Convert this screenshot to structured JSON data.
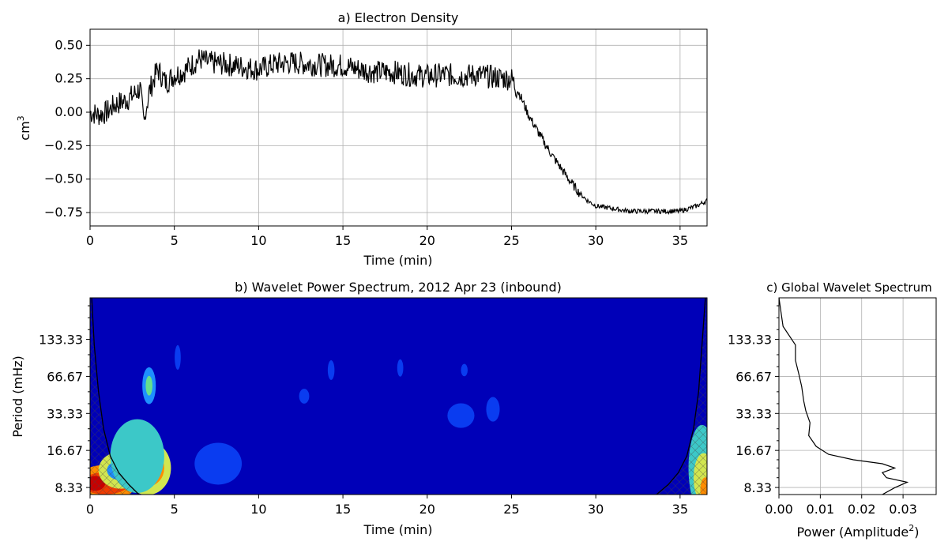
{
  "chart_data": [
    {
      "id": "a",
      "type": "line",
      "title": "a) Electron Density",
      "xlabel": "Time (min)",
      "ylabel": "cm",
      "ylabel_sup": "3",
      "xlim": [
        0,
        36.6
      ],
      "ylim": [
        -0.85,
        0.62
      ],
      "xticks": [
        0,
        5,
        10,
        15,
        20,
        25,
        30,
        35
      ],
      "xtick_labels": [
        "0",
        "5",
        "10",
        "15",
        "20",
        "25",
        "30",
        "35"
      ],
      "yticks": [
        0.5,
        0.25,
        0.0,
        -0.25,
        -0.5,
        -0.75
      ],
      "ytick_labels": [
        "0.50",
        "0.25",
        "0.00",
        "−0.25",
        "−0.50",
        "−0.75"
      ],
      "grid": true,
      "line_color": "#000000",
      "series": [
        {
          "x": [
            0,
            0.5,
            1,
            1.5,
            2,
            2.5,
            3,
            3.2,
            3.5,
            4,
            4.5,
            5,
            5.5,
            6,
            6.5,
            7,
            8,
            9,
            10,
            11,
            12,
            13,
            14,
            15,
            16,
            17,
            18,
            19,
            20,
            21,
            22,
            23,
            24,
            25,
            25.5,
            26,
            26.5,
            27,
            27.5,
            28,
            28.5,
            29,
            29.5,
            30,
            31,
            32,
            33,
            34,
            35,
            36,
            36.6
          ],
          "y": [
            0.0,
            -0.02,
            0.0,
            0.06,
            0.08,
            0.12,
            0.18,
            -0.08,
            0.15,
            0.32,
            0.22,
            0.28,
            0.3,
            0.35,
            0.4,
            0.37,
            0.36,
            0.34,
            0.32,
            0.36,
            0.37,
            0.36,
            0.35,
            0.35,
            0.32,
            0.3,
            0.3,
            0.28,
            0.27,
            0.28,
            0.27,
            0.28,
            0.26,
            0.25,
            0.13,
            -0.02,
            -0.13,
            -0.24,
            -0.34,
            -0.43,
            -0.52,
            -0.6,
            -0.66,
            -0.7,
            -0.72,
            -0.74,
            -0.74,
            -0.74,
            -0.74,
            -0.7,
            -0.66
          ]
        }
      ]
    },
    {
      "id": "b",
      "type": "heatmap",
      "title": "b) Wavelet Power Spectrum, 2012 Apr 23 (inbound)",
      "xlabel": "Time (min)",
      "ylabel": "Period (mHz)",
      "xlim": [
        0,
        36.6
      ],
      "log_y": true,
      "ylim": [
        7.3,
        290
      ],
      "xticks": [
        0,
        5,
        10,
        15,
        20,
        25,
        30,
        35
      ],
      "xtick_labels": [
        "0",
        "5",
        "10",
        "15",
        "20",
        "25",
        "30",
        "35"
      ],
      "yticks": [
        133.33,
        66.67,
        33.33,
        16.67,
        8.33
      ],
      "ytick_labels": [
        "133.33",
        "66.67",
        "33.33",
        "16.67",
        "8.33"
      ],
      "background_color": "#0000b8",
      "colormap": [
        "#0000b8",
        "#0a3cf0",
        "#1e90ff",
        "#3cc8c8",
        "#66e08c",
        "#d2e650",
        "#ffcc1e",
        "#ff8c00",
        "#f03c00",
        "#c80000"
      ],
      "blobs": [
        {
          "x": 0.9,
          "y": 9.0,
          "rx": 1.8,
          "ry": 0.15,
          "level": 7
        },
        {
          "x": 0.9,
          "y": 9.0,
          "rx": 1.4,
          "ry": 0.09,
          "level": 8
        },
        {
          "x": 0.3,
          "y": 9.0,
          "rx": 0.6,
          "ry": 0.06,
          "level": 9
        },
        {
          "x": 1.8,
          "y": 11.5,
          "rx": 1.3,
          "ry": 0.15,
          "level": 5
        },
        {
          "x": 1.8,
          "y": 11.5,
          "rx": 0.8,
          "ry": 0.08,
          "level": 2
        },
        {
          "x": 3.4,
          "y": 12.0,
          "rx": 1.4,
          "ry": 0.22,
          "level": 5
        },
        {
          "x": 3.4,
          "y": 12.0,
          "rx": 1.0,
          "ry": 0.15,
          "level": 7
        },
        {
          "x": 3.4,
          "y": 12.0,
          "rx": 0.6,
          "ry": 0.09,
          "level": 9
        },
        {
          "x": 2.8,
          "y": 15.0,
          "rx": 1.6,
          "ry": 0.3,
          "level": 3
        },
        {
          "x": 7.6,
          "y": 13.0,
          "rx": 1.4,
          "ry": 0.17,
          "level": 1
        },
        {
          "x": 3.5,
          "y": 56.0,
          "rx": 0.4,
          "ry": 0.15,
          "level": 2
        },
        {
          "x": 3.5,
          "y": 56.0,
          "rx": 0.2,
          "ry": 0.08,
          "level": 4
        },
        {
          "x": 5.2,
          "y": 95.0,
          "rx": 0.18,
          "ry": 0.1,
          "level": 1
        },
        {
          "x": 12.7,
          "y": 46.0,
          "rx": 0.3,
          "ry": 0.06,
          "level": 1
        },
        {
          "x": 14.3,
          "y": 75.0,
          "rx": 0.2,
          "ry": 0.08,
          "level": 1
        },
        {
          "x": 18.4,
          "y": 78.0,
          "rx": 0.18,
          "ry": 0.07,
          "level": 1
        },
        {
          "x": 22.2,
          "y": 75.0,
          "rx": 0.2,
          "ry": 0.05,
          "level": 1
        },
        {
          "x": 22.0,
          "y": 32.0,
          "rx": 0.8,
          "ry": 0.1,
          "level": 1
        },
        {
          "x": 23.9,
          "y": 36.0,
          "rx": 0.4,
          "ry": 0.1,
          "level": 1
        },
        {
          "x": 36.3,
          "y": 12.0,
          "rx": 0.8,
          "ry": 0.35,
          "level": 3
        },
        {
          "x": 36.4,
          "y": 10.0,
          "rx": 0.6,
          "ry": 0.2,
          "level": 5
        },
        {
          "x": 36.5,
          "y": 8.0,
          "rx": 0.3,
          "ry": 0.1,
          "level": 7
        }
      ],
      "coi_left": [
        [
          0.1,
          290
        ],
        [
          0.25,
          120
        ],
        [
          0.5,
          50
        ],
        [
          0.8,
          25
        ],
        [
          1.2,
          15
        ],
        [
          1.7,
          11
        ],
        [
          2.3,
          8.8
        ],
        [
          2.9,
          7.3
        ]
      ],
      "coi_right": [
        [
          36.5,
          290
        ],
        [
          36.3,
          120
        ],
        [
          36.1,
          50
        ],
        [
          35.8,
          25
        ],
        [
          35.4,
          15
        ],
        [
          34.9,
          11
        ],
        [
          34.3,
          8.8
        ],
        [
          33.6,
          7.3
        ]
      ]
    },
    {
      "id": "c",
      "type": "line",
      "title": "c) Global Wavelet Spectrum",
      "xlabel": "Power (Amplitude",
      "xlabel_sup": "2",
      "xlabel_suffix": ")",
      "log_y": true,
      "ylim": [
        7.3,
        290
      ],
      "xlim": [
        0,
        0.038
      ],
      "xticks": [
        0.0,
        0.01,
        0.02,
        0.03
      ],
      "xtick_labels": [
        "0.00",
        "0.01",
        "0.02",
        "0.03"
      ],
      "yticks": [
        133.33,
        66.67,
        33.33,
        16.67,
        8.33
      ],
      "ytick_labels": [
        "133.33",
        "66.67",
        "33.33",
        "16.67",
        "8.33"
      ],
      "grid": true,
      "series": [
        {
          "power": [
            0.0,
            0.001,
            0.004,
            0.004,
            0.0048,
            0.0055,
            0.006,
            0.0065,
            0.0075,
            0.0072,
            0.009,
            0.012,
            0.018,
            0.025,
            0.028,
            0.025,
            0.026,
            0.031,
            0.028,
            0.025
          ],
          "period": [
            290,
            170,
            120,
            90,
            70,
            55,
            42,
            35,
            28,
            22,
            18,
            15.5,
            14,
            13,
            12,
            11,
            10,
            9.2,
            8.3,
            7.3
          ]
        }
      ]
    }
  ]
}
